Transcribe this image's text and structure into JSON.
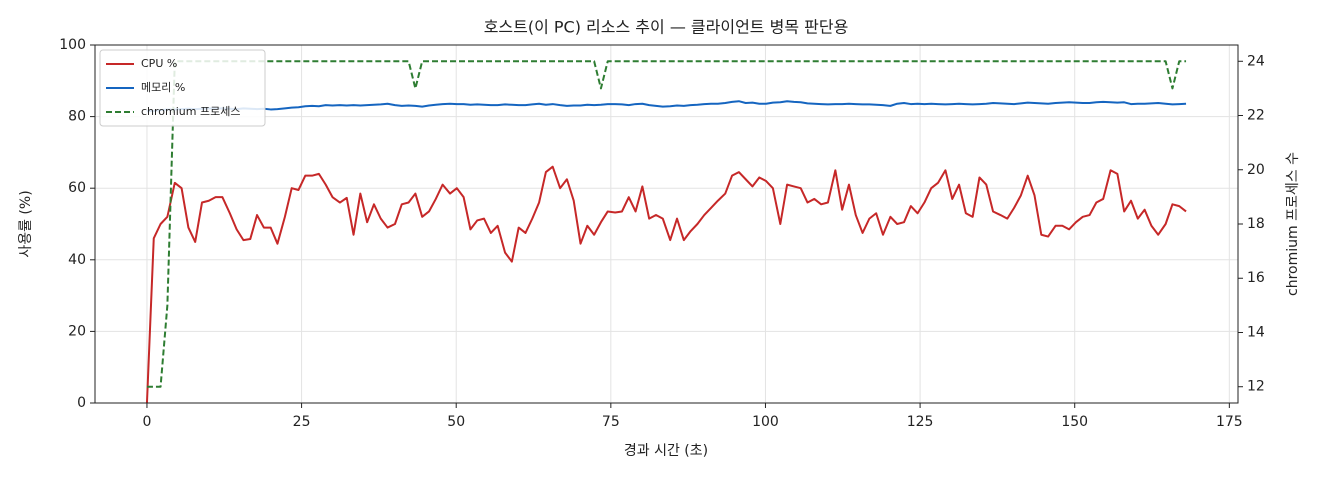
{
  "chart_data": {
    "type": "line",
    "title": "호스트(이 PC) 리소스 추이 — 클라이언트 병목 판단용",
    "xlabel": "경과 시간 (초)",
    "ylabel": "사용률 (%)",
    "y2label": "chromium 프로세스 수",
    "x": [
      0,
      1.1,
      2.2,
      3.3,
      4.5,
      5.6,
      6.7,
      7.8,
      8.9,
      10.0,
      11.1,
      12.2,
      13.4,
      14.5,
      15.6,
      16.7,
      17.8,
      18.9,
      20.0,
      21.1,
      22.3,
      23.4,
      24.5,
      25.6,
      26.7,
      27.8,
      28.9,
      30.0,
      31.2,
      32.3,
      33.4,
      34.5,
      35.6,
      36.7,
      37.8,
      38.9,
      40.1,
      41.2,
      42.3,
      43.4,
      44.5,
      45.6,
      46.7,
      47.8,
      49.0,
      50.1,
      51.2,
      52.3,
      53.4,
      54.5,
      55.6,
      56.7,
      57.9,
      59.0,
      60.1,
      61.2,
      62.3,
      63.4,
      64.5,
      65.6,
      66.8,
      67.9,
      69.0,
      70.1,
      71.2,
      72.3,
      73.4,
      74.5,
      75.7,
      76.8,
      77.9,
      79.0,
      80.1,
      81.2,
      82.3,
      83.4,
      84.6,
      85.7,
      86.8,
      87.9,
      89.0,
      90.1,
      91.2,
      92.3,
      93.5,
      94.6,
      95.7,
      96.8,
      97.9,
      99.0,
      100.1,
      101.2,
      102.4,
      103.5,
      104.6,
      105.7,
      106.8,
      107.9,
      109.0,
      110.1,
      111.3,
      112.4,
      113.5,
      114.6,
      115.7,
      116.8,
      117.9,
      119.0,
      120.2,
      121.3,
      122.4,
      123.5,
      124.6,
      125.7,
      126.8,
      127.9,
      129.1,
      130.2,
      131.3,
      132.4,
      133.5,
      134.6,
      135.7,
      136.8,
      138.0,
      139.1,
      140.2,
      141.3,
      142.4,
      143.5,
      144.6,
      145.7,
      146.9,
      148.0,
      149.1,
      150.2,
      151.3,
      152.4,
      153.5,
      154.6,
      155.8,
      156.9,
      158.0,
      159.1,
      160.2,
      161.3,
      162.4,
      163.5,
      164.7,
      165.8,
      166.9,
      168.0
    ],
    "series": [
      {
        "name": "CPU %",
        "color": "#c62828",
        "axis": "y",
        "dashed": false,
        "values": [
          0,
          46,
          50,
          52,
          61.5,
          60,
          49,
          45,
          56,
          56.5,
          57.5,
          57.5,
          53,
          48.5,
          45.5,
          45.8,
          52.5,
          49,
          49,
          44.5,
          52,
          60,
          59.5,
          63.5,
          63.5,
          64,
          61,
          57.5,
          56,
          57.3,
          47,
          58.5,
          50.5,
          55.5,
          51.5,
          49,
          50,
          55.5,
          56,
          58.5,
          52,
          53.5,
          57,
          61,
          58.5,
          60,
          57.5,
          48.5,
          51,
          51.5,
          47.5,
          49.5,
          42,
          39.5,
          49,
          47.5,
          51.5,
          56,
          64.5,
          66,
          60,
          62.5,
          56.5,
          44.5,
          49.5,
          47,
          50.5,
          53.5,
          53.2,
          53.5,
          57.5,
          53.5,
          60.5,
          51.5,
          52.5,
          51.5,
          45.5,
          51.5,
          45.5,
          48,
          50,
          52.5,
          54.5,
          56.5,
          58.5,
          63.5,
          64.5,
          62.5,
          60.5,
          63,
          62,
          60,
          50,
          61,
          60.5,
          60,
          56,
          57,
          55.5,
          56,
          65,
          54,
          61,
          52.5,
          47.5,
          51.5,
          53,
          47,
          52,
          50,
          50.5,
          55,
          53,
          56,
          60,
          61.5,
          65,
          57,
          61,
          53,
          52,
          63,
          61,
          53.5,
          52.5,
          51.5,
          54.5,
          58,
          63.5,
          58,
          47,
          46.5,
          49.5,
          49.5,
          48.5,
          50.5,
          52,
          52.5,
          56,
          57,
          65,
          64,
          53.5,
          56.5,
          51.5,
          54,
          49.5,
          47,
          50,
          55.5,
          55,
          53.5
        ]
      },
      {
        "name": "메모리 %",
        "color": "#1565c0",
        "axis": "y",
        "dashed": false,
        "values": [
          81.5,
          81.6,
          81.8,
          82,
          82,
          82.1,
          82.2,
          82.1,
          82.2,
          82.3,
          82.2,
          82.3,
          82.2,
          82.1,
          82.3,
          82.2,
          82.1,
          82.2,
          82,
          82.1,
          82.3,
          82.5,
          82.6,
          82.9,
          83,
          82.9,
          83.2,
          83.1,
          83.2,
          83.1,
          83.2,
          83.1,
          83.2,
          83.3,
          83.4,
          83.6,
          83.2,
          83,
          83.1,
          83,
          82.8,
          83.1,
          83.3,
          83.5,
          83.6,
          83.5,
          83.5,
          83.3,
          83.4,
          83.3,
          83.2,
          83.2,
          83.4,
          83.3,
          83.2,
          83.2,
          83.4,
          83.6,
          83.3,
          83.5,
          83.2,
          83,
          83.1,
          83.1,
          83.3,
          83.2,
          83.3,
          83.5,
          83.5,
          83.4,
          83.2,
          83.5,
          83.6,
          83.2,
          83,
          82.8,
          82.9,
          83.1,
          83,
          83.2,
          83.3,
          83.5,
          83.6,
          83.6,
          83.8,
          84.1,
          84.3,
          83.8,
          83.9,
          83.6,
          83.6,
          83.9,
          84,
          84.3,
          84.1,
          84,
          83.7,
          83.6,
          83.5,
          83.4,
          83.5,
          83.5,
          83.6,
          83.5,
          83.4,
          83.4,
          83.3,
          83.2,
          83,
          83.6,
          83.8,
          83.5,
          83.6,
          83.5,
          83.6,
          83.5,
          83.4,
          83.5,
          83.6,
          83.5,
          83.4,
          83.5,
          83.6,
          83.8,
          83.7,
          83.6,
          83.5,
          83.7,
          83.9,
          83.8,
          83.7,
          83.6,
          83.8,
          83.9,
          84,
          83.9,
          83.8,
          83.8,
          84,
          84.1,
          84,
          83.9,
          84,
          83.5,
          83.6,
          83.6,
          83.7,
          83.8,
          83.6,
          83.4,
          83.5,
          83.6
        ]
      },
      {
        "name": "chromium 프로세스",
        "color": "#2e7d32",
        "axis": "y2",
        "dashed": true,
        "values": [
          12,
          12,
          12,
          15,
          24,
          24,
          24,
          24,
          24,
          24,
          24,
          24,
          24,
          24,
          24,
          24,
          24,
          24,
          24,
          24,
          24,
          24,
          24,
          24,
          24,
          24,
          24,
          24,
          24,
          24,
          24,
          24,
          24,
          24,
          24,
          24,
          24,
          24,
          24,
          23,
          24,
          24,
          24,
          24,
          24,
          24,
          24,
          24,
          24,
          24,
          24,
          24,
          24,
          24,
          24,
          24,
          24,
          24,
          24,
          24,
          24,
          24,
          24,
          24,
          24,
          24,
          23,
          24,
          24,
          24,
          24,
          24,
          24,
          24,
          24,
          24,
          24,
          24,
          24,
          24,
          24,
          24,
          24,
          24,
          24,
          24,
          24,
          24,
          24,
          24,
          24,
          24,
          24,
          24,
          24,
          24,
          24,
          24,
          24,
          24,
          24,
          24,
          24,
          24,
          24,
          24,
          24,
          24,
          24,
          24,
          24,
          24,
          24,
          24,
          24,
          24,
          24,
          24,
          24,
          24,
          24,
          24,
          24,
          24,
          24,
          24,
          24,
          24,
          24,
          24,
          24,
          24,
          24,
          24,
          24,
          24,
          24,
          24,
          24,
          24,
          24,
          24,
          24,
          24,
          24,
          24,
          24,
          24,
          24,
          23,
          24,
          24
        ]
      }
    ],
    "xlim": [
      -8.4,
      176.4
    ],
    "xticks": [
      0,
      25,
      50,
      75,
      100,
      125,
      150,
      175
    ],
    "ylim": [
      0,
      100
    ],
    "yticks": [
      0,
      20,
      40,
      60,
      80,
      100
    ],
    "y2lim": [
      11.4,
      24.6
    ],
    "y2ticks": [
      12,
      14,
      16,
      18,
      20,
      22,
      24
    ],
    "grid": true,
    "legend": "upper-left"
  }
}
